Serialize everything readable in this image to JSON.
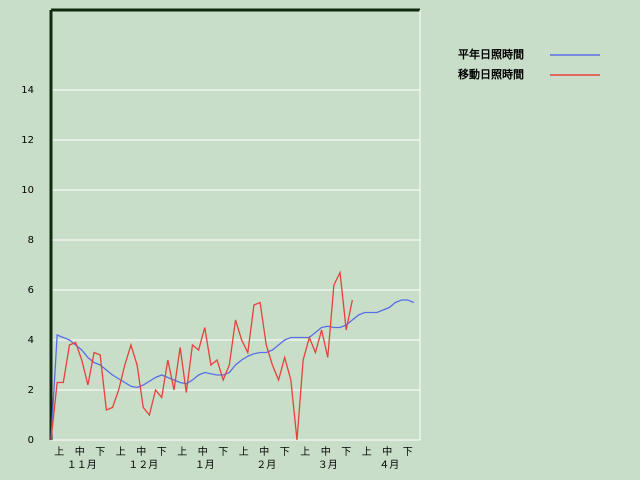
{
  "chart_data": {
    "type": "line",
    "dekad_labels": [
      "上",
      "中",
      "下",
      "上",
      "中",
      "下",
      "上",
      "中",
      "下",
      "上",
      "中",
      "下",
      "上",
      "中",
      "下",
      "上",
      "中",
      "下"
    ],
    "month_labels": [
      "１１月",
      "１２月",
      "１月",
      "２月",
      "３月",
      "４月"
    ],
    "ylim": [
      0,
      17.2
    ],
    "yticks": [
      0,
      2,
      4,
      6,
      8,
      10,
      12,
      14
    ],
    "grid": true,
    "legend": "top-right",
    "series": [
      {
        "name": "平年日照時間",
        "color": "#5a6ee6",
        "values": [
          0,
          4.2,
          4.1,
          4.0,
          3.8,
          3.6,
          3.3,
          3.1,
          3.0,
          2.8,
          2.6,
          2.45,
          2.3,
          2.15,
          2.1,
          2.2,
          2.35,
          2.5,
          2.6,
          2.5,
          2.4,
          2.3,
          2.25,
          2.4,
          2.6,
          2.7,
          2.65,
          2.6,
          2.6,
          2.7,
          3.0,
          3.2,
          3.35,
          3.45,
          3.5,
          3.5,
          3.6,
          3.8,
          4.0,
          4.1,
          4.1,
          4.1,
          4.1,
          4.3,
          4.5,
          4.55,
          4.5,
          4.5,
          4.6,
          4.8,
          5.0,
          5.1,
          5.1,
          5.1,
          5.2,
          5.3,
          5.5,
          5.6,
          5.6,
          5.5,
          null
        ]
      },
      {
        "name": "移動日照時間",
        "color": "#e8403a",
        "values": [
          0,
          2.3,
          2.3,
          3.8,
          3.9,
          3.2,
          2.2,
          3.5,
          3.4,
          1.2,
          1.3,
          2.0,
          3.0,
          3.8,
          3.0,
          1.3,
          1.0,
          2.0,
          1.7,
          3.2,
          2.0,
          3.7,
          1.9,
          3.8,
          3.6,
          4.5,
          3.0,
          3.2,
          2.4,
          3.0,
          4.8,
          4.0,
          3.5,
          5.4,
          5.5,
          3.8,
          3.0,
          2.4,
          3.3,
          2.4,
          0,
          3.2,
          4.1,
          3.5,
          4.4,
          3.3,
          6.2,
          6.7,
          4.4,
          5.6,
          null,
          null,
          null,
          null,
          null,
          null,
          null,
          null,
          null,
          null,
          null
        ]
      }
    ]
  }
}
